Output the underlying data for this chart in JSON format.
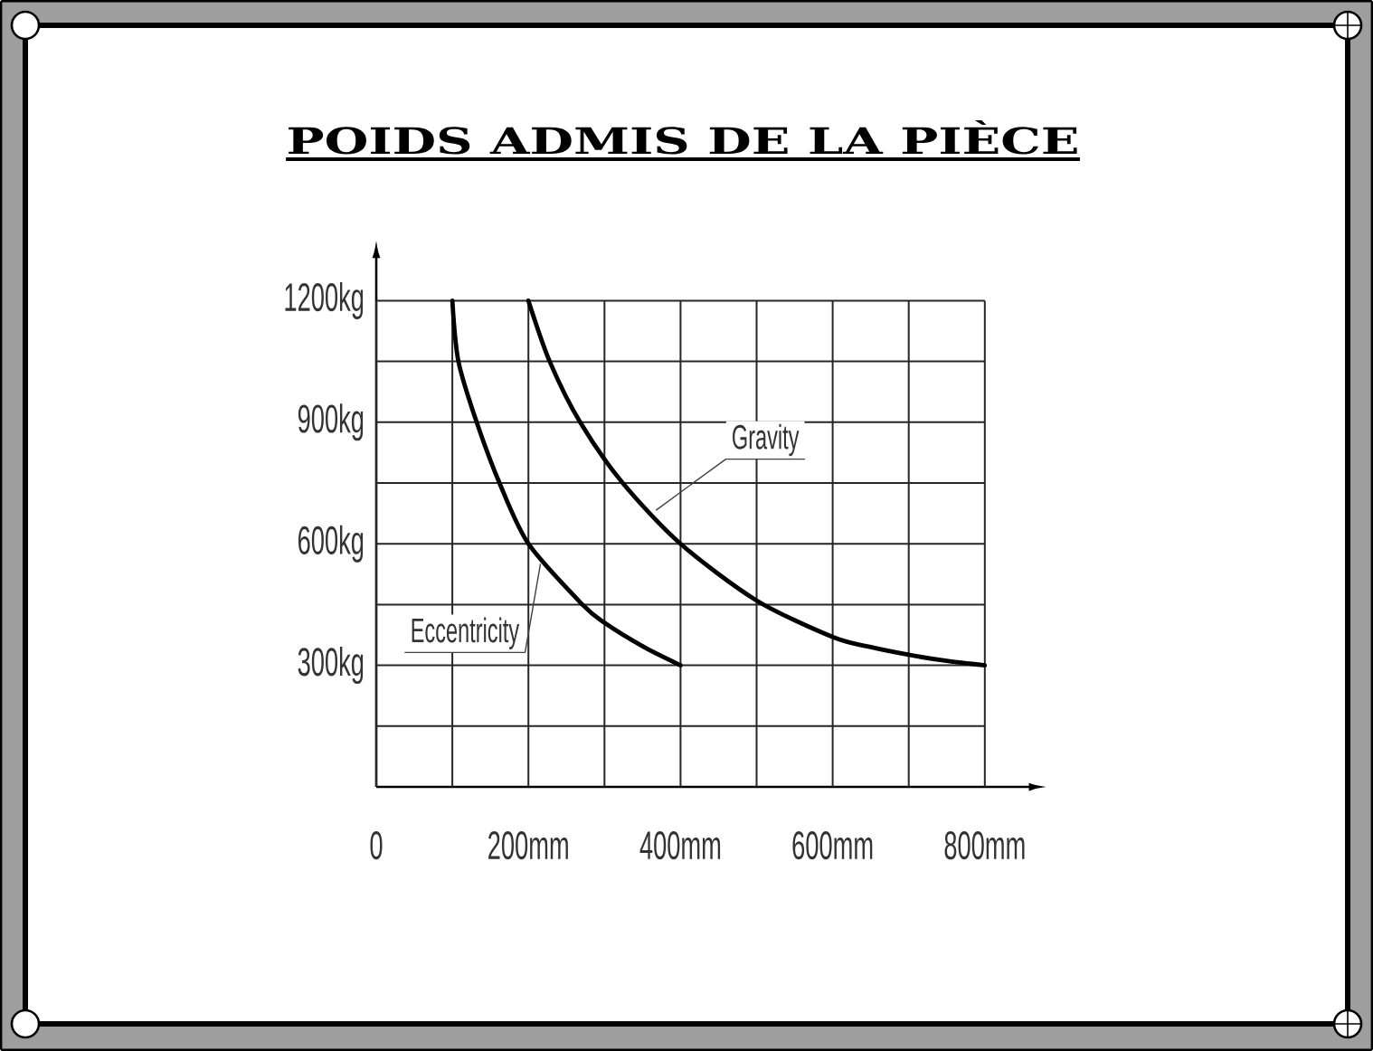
{
  "chart_data": {
    "type": "line",
    "title": "POIDS ADMIS DE LA PIÈCE",
    "series": [
      {
        "name": "Eccentricity",
        "color": "#000000",
        "x": [
          100,
          108,
          132,
          162,
          200,
          271,
          300,
          352,
          400
        ],
        "values": [
          1200,
          1050,
          900,
          750,
          600,
          450,
          405,
          345,
          300
        ]
      },
      {
        "name": "Gravity",
        "color": "#000000",
        "x": [
          200,
          228,
          268,
          324,
          400,
          500,
          600,
          650,
          700,
          750,
          800
        ],
        "values": [
          1200,
          1050,
          900,
          750,
          600,
          460,
          370,
          345,
          326,
          311,
          300
        ]
      }
    ],
    "xlim": [
      0,
      858
    ],
    "ylim": [
      0,
      1305
    ],
    "xticks": [
      0,
      {
        "value": 100,
        "label": null
      },
      {
        "value": 200,
        "label": "200mm"
      },
      {
        "value": 300,
        "label": null
      },
      {
        "value": 400,
        "label": "400mm"
      },
      {
        "value": 500,
        "label": null
      },
      {
        "value": 600,
        "label": "600mm"
      },
      {
        "value": 700,
        "label": null
      },
      {
        "value": 800,
        "label": "800mm"
      }
    ],
    "yticks": [
      {
        "value": 150,
        "label": null
      },
      {
        "value": 300,
        "label": "300kg"
      },
      {
        "value": 450,
        "label": null
      },
      {
        "value": 600,
        "label": "600kg"
      },
      {
        "value": 750,
        "label": null
      },
      {
        "value": 900,
        "label": "900kg"
      },
      {
        "value": 1050,
        "label": null
      },
      {
        "value": 1200,
        "label": "1200kg"
      }
    ],
    "grid": true
  }
}
